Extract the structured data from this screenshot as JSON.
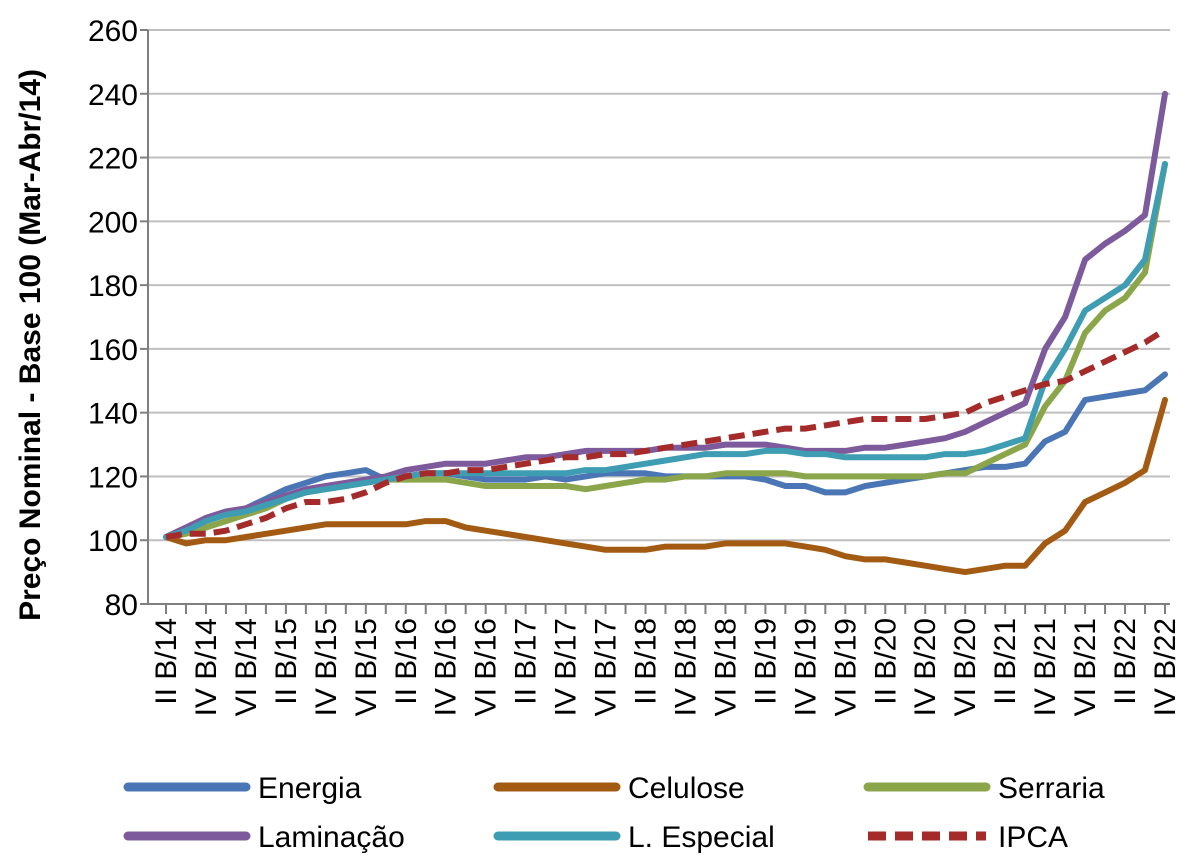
{
  "chart_data": {
    "type": "line",
    "title": "",
    "xlabel": "",
    "ylabel": "Preço Nominal - Base 100 (Mar-Abr/14)",
    "ylim": [
      80,
      260
    ],
    "yticks": [
      80,
      100,
      120,
      140,
      160,
      180,
      200,
      220,
      240,
      260
    ],
    "grid": "horizontal",
    "legend_position": "bottom",
    "x_tick_labels": [
      "II B/14",
      "IV B/14",
      "VI B/14",
      "II B/15",
      "IV B/15",
      "VI B/15",
      "II B/16",
      "IV B/16",
      "VI B/16",
      "II B/17",
      "IV B/17",
      "VI B/17",
      "II B/18",
      "IV B/18",
      "VI B/18",
      "II B/19",
      "IV B/19",
      "VI B/19",
      "II B/20",
      "IV B/20",
      "VI B/20",
      "II B/21",
      "IV B/21",
      "VI B/21",
      "II B/22",
      "IV B/22"
    ],
    "x": [
      "II B/14",
      "III B/14",
      "IV B/14",
      "V B/14",
      "VI B/14",
      "I B/15",
      "II B/15",
      "III B/15",
      "IV B/15",
      "V B/15",
      "VI B/15",
      "I B/16",
      "II B/16",
      "III B/16",
      "IV B/16",
      "V B/16",
      "VI B/16",
      "I B/17",
      "II B/17",
      "III B/17",
      "IV B/17",
      "V B/17",
      "VI B/17",
      "I B/18",
      "II B/18",
      "III B/18",
      "IV B/18",
      "V B/18",
      "VI B/18",
      "I B/19",
      "II B/19",
      "III B/19",
      "IV B/19",
      "V B/19",
      "VI B/19",
      "I B/20",
      "II B/20",
      "III B/20",
      "IV B/20",
      "V B/20",
      "VI B/20",
      "I B/21",
      "II B/21",
      "III B/21",
      "IV B/21",
      "V B/21",
      "VI B/21",
      "I B/22",
      "II B/22",
      "III B/22",
      "IV B/22"
    ],
    "series": [
      {
        "name": "Energia",
        "color": "#4A76B5",
        "dash": "solid",
        "values": [
          101,
          103,
          107,
          108,
          110,
          113,
          116,
          118,
          120,
          121,
          122,
          119,
          120,
          121,
          121,
          120,
          119,
          119,
          119,
          120,
          119,
          120,
          121,
          121,
          121,
          120,
          120,
          120,
          120,
          120,
          119,
          117,
          117,
          115,
          115,
          117,
          118,
          119,
          120,
          121,
          122,
          123,
          123,
          124,
          131,
          134,
          144,
          145,
          146,
          147,
          152
        ]
      },
      {
        "name": "Celulose",
        "color": "#A35B13",
        "dash": "solid",
        "values": [
          101,
          99,
          100,
          100,
          101,
          102,
          103,
          104,
          105,
          105,
          105,
          105,
          105,
          106,
          106,
          104,
          103,
          102,
          101,
          100,
          99,
          98,
          97,
          97,
          97,
          98,
          98,
          98,
          99,
          99,
          99,
          99,
          98,
          97,
          95,
          94,
          94,
          93,
          92,
          91,
          90,
          91,
          92,
          92,
          99,
          103,
          112,
          115,
          118,
          122,
          144
        ]
      },
      {
        "name": "Serraria",
        "color": "#8BA64A",
        "dash": "solid",
        "values": [
          101,
          102,
          104,
          106,
          108,
          110,
          113,
          115,
          116,
          117,
          118,
          119,
          119,
          119,
          119,
          118,
          117,
          117,
          117,
          117,
          117,
          116,
          117,
          118,
          119,
          119,
          120,
          120,
          121,
          121,
          121,
          121,
          120,
          120,
          120,
          120,
          120,
          120,
          120,
          121,
          121,
          124,
          127,
          130,
          142,
          150,
          165,
          172,
          176,
          184,
          218
        ]
      },
      {
        "name": "Laminação",
        "color": "#7D5A9B",
        "dash": "solid",
        "values": [
          101,
          104,
          107,
          109,
          110,
          112,
          114,
          116,
          117,
          118,
          119,
          120,
          122,
          123,
          124,
          124,
          124,
          125,
          126,
          126,
          127,
          128,
          128,
          128,
          128,
          129,
          129,
          129,
          130,
          130,
          130,
          129,
          128,
          128,
          128,
          129,
          129,
          130,
          131,
          132,
          134,
          137,
          140,
          143,
          160,
          170,
          188,
          193,
          197,
          202,
          240
        ]
      },
      {
        "name": "L. Especial",
        "color": "#3E9DB2",
        "dash": "solid",
        "values": [
          101,
          103,
          106,
          108,
          109,
          111,
          113,
          115,
          116,
          117,
          118,
          119,
          120,
          121,
          121,
          121,
          121,
          121,
          121,
          121,
          121,
          122,
          122,
          123,
          124,
          125,
          126,
          127,
          127,
          127,
          128,
          128,
          127,
          127,
          126,
          126,
          126,
          126,
          126,
          127,
          127,
          128,
          130,
          132,
          150,
          160,
          172,
          176,
          180,
          188,
          218
        ]
      },
      {
        "name": "IPCA",
        "color": "#A52A2A",
        "dash": "dashed",
        "values": [
          101,
          102,
          102,
          103,
          105,
          107,
          110,
          112,
          112,
          113,
          115,
          118,
          120,
          121,
          121,
          122,
          122,
          123,
          124,
          125,
          126,
          126,
          127,
          127,
          128,
          129,
          130,
          131,
          132,
          133,
          134,
          135,
          135,
          136,
          137,
          138,
          138,
          138,
          138,
          139,
          140,
          143,
          145,
          147,
          149,
          150,
          153,
          156,
          159,
          162,
          166
        ]
      }
    ]
  }
}
